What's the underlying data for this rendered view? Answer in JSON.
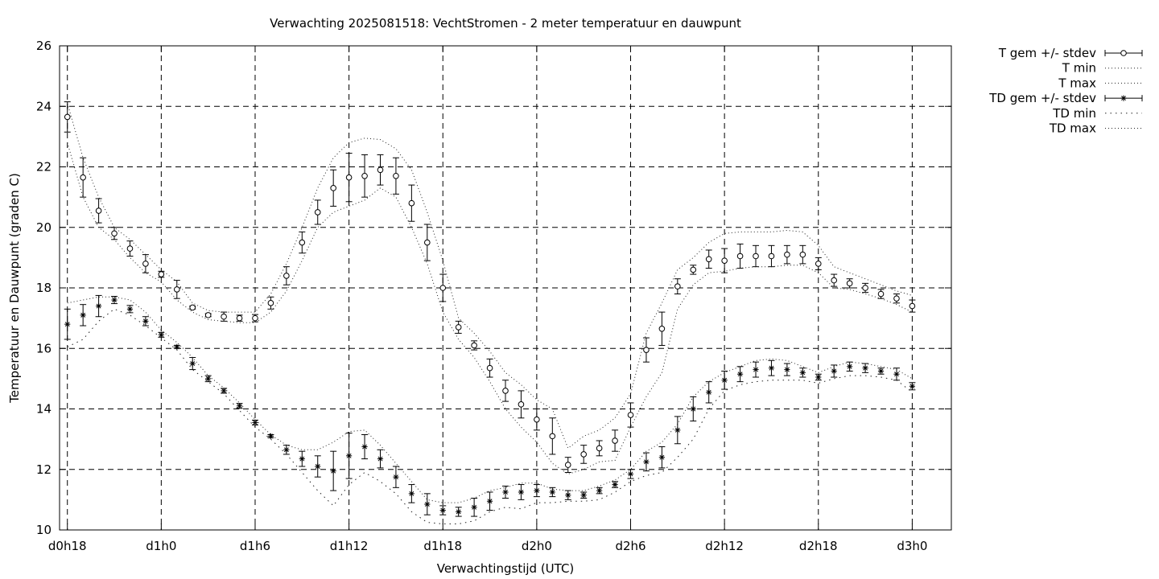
{
  "chart_data": {
    "type": "line",
    "title": "Verwachting 2025081518: VechtStromen - 2 meter temperatuur en dauwpunt",
    "xlabel": "Verwachtingstijd (UTC)",
    "ylabel": "Temperatuur en Dauwpunt (graden C)",
    "xlim": [
      -0.5,
      56.5
    ],
    "ylim": [
      10,
      26
    ],
    "xticks": [
      {
        "x": 0,
        "label": "d0h18"
      },
      {
        "x": 6,
        "label": "d1h0"
      },
      {
        "x": 12,
        "label": "d1h6"
      },
      {
        "x": 18,
        "label": "d1h12"
      },
      {
        "x": 24,
        "label": "d1h18"
      },
      {
        "x": 30,
        "label": "d2h0"
      },
      {
        "x": 36,
        "label": "d2h6"
      },
      {
        "x": 42,
        "label": "d2h12"
      },
      {
        "x": 48,
        "label": "d2h18"
      },
      {
        "x": 54,
        "label": "d3h0"
      }
    ],
    "yticks": [
      10,
      12,
      14,
      16,
      18,
      20,
      22,
      24,
      26
    ],
    "grid": true,
    "legend_position": "outside-top-right",
    "x": [
      0,
      1,
      2,
      3,
      4,
      5,
      6,
      7,
      8,
      9,
      10,
      11,
      12,
      13,
      14,
      15,
      16,
      17,
      18,
      19,
      20,
      21,
      22,
      23,
      24,
      25,
      26,
      27,
      28,
      29,
      30,
      31,
      32,
      33,
      34,
      35,
      36,
      37,
      38,
      39,
      40,
      41,
      42,
      43,
      44,
      45,
      46,
      47,
      48,
      49,
      50,
      51,
      52,
      53,
      54
    ],
    "series": [
      {
        "name": "T gem +/- stdev",
        "kind": "errorbar",
        "marker": "circle",
        "mean": [
          23.65,
          21.65,
          20.55,
          19.8,
          19.3,
          18.8,
          18.45,
          17.95,
          17.35,
          17.1,
          17.05,
          17.0,
          17.0,
          17.5,
          18.4,
          19.5,
          20.5,
          21.3,
          21.65,
          21.7,
          21.9,
          21.7,
          20.8,
          19.5,
          18.0,
          16.7,
          16.1,
          15.35,
          14.6,
          14.15,
          13.65,
          13.1,
          12.15,
          12.5,
          12.7,
          12.95,
          13.8,
          15.95,
          16.65,
          18.05,
          18.6,
          18.95,
          18.9,
          19.05,
          19.05,
          19.05,
          19.1,
          19.1,
          18.8,
          18.25,
          18.15,
          18.0,
          17.8,
          17.65,
          17.4
        ],
        "stdev": [
          0.5,
          0.65,
          0.4,
          0.2,
          0.25,
          0.3,
          0.1,
          0.3,
          0.05,
          0.05,
          0.15,
          0.1,
          0.12,
          0.2,
          0.3,
          0.35,
          0.4,
          0.6,
          0.8,
          0.7,
          0.5,
          0.6,
          0.6,
          0.6,
          0.45,
          0.2,
          0.15,
          0.3,
          0.35,
          0.45,
          0.35,
          0.6,
          0.25,
          0.3,
          0.25,
          0.35,
          0.4,
          0.4,
          0.55,
          0.25,
          0.15,
          0.3,
          0.4,
          0.4,
          0.35,
          0.35,
          0.3,
          0.3,
          0.2,
          0.2,
          0.15,
          0.15,
          0.15,
          0.15,
          0.2
        ]
      },
      {
        "name": "T min",
        "kind": "dotted",
        "values": [
          22.8,
          21.0,
          20.0,
          19.6,
          19.0,
          18.5,
          18.2,
          17.6,
          17.2,
          16.95,
          16.9,
          16.85,
          16.85,
          17.2,
          17.9,
          18.9,
          20.0,
          20.5,
          20.7,
          20.9,
          21.3,
          21.0,
          20.0,
          18.8,
          17.2,
          16.3,
          15.7,
          14.9,
          14.0,
          13.4,
          12.9,
          12.2,
          11.85,
          12.0,
          12.25,
          12.3,
          13.4,
          14.4,
          15.2,
          17.3,
          18.1,
          18.5,
          18.55,
          18.65,
          18.7,
          18.7,
          18.75,
          18.75,
          18.5,
          18.0,
          17.95,
          17.8,
          17.65,
          17.45,
          17.2
        ]
      },
      {
        "name": "T max",
        "kind": "dotted",
        "values": [
          24.1,
          22.3,
          21.0,
          20.0,
          19.6,
          19.1,
          18.6,
          18.2,
          17.5,
          17.25,
          17.2,
          17.2,
          17.2,
          17.8,
          18.8,
          20.0,
          21.3,
          22.3,
          22.8,
          22.95,
          22.9,
          22.6,
          21.9,
          20.5,
          18.9,
          17.0,
          16.5,
          15.9,
          15.2,
          14.8,
          14.3,
          14.0,
          12.7,
          13.1,
          13.3,
          13.7,
          14.5,
          16.5,
          17.5,
          18.6,
          19.0,
          19.5,
          19.8,
          19.85,
          19.85,
          19.85,
          19.9,
          19.85,
          19.4,
          18.7,
          18.5,
          18.3,
          18.1,
          17.9,
          17.75
        ]
      },
      {
        "name": "TD gem +/- stdev",
        "kind": "errorbar",
        "marker": "star",
        "mean": [
          16.8,
          17.1,
          17.4,
          17.6,
          17.3,
          16.9,
          16.45,
          16.05,
          15.5,
          15.0,
          14.6,
          14.1,
          13.55,
          13.1,
          12.65,
          12.35,
          12.1,
          11.95,
          12.45,
          12.75,
          12.35,
          11.75,
          11.2,
          10.85,
          10.65,
          10.6,
          10.75,
          10.95,
          11.25,
          11.25,
          11.3,
          11.25,
          11.15,
          11.15,
          11.3,
          11.5,
          11.85,
          12.25,
          12.4,
          13.3,
          14.0,
          14.55,
          14.95,
          15.15,
          15.3,
          15.35,
          15.3,
          15.2,
          15.05,
          15.25,
          15.4,
          15.35,
          15.25,
          15.15,
          14.75
        ],
        "stdev": [
          0.5,
          0.35,
          0.35,
          0.12,
          0.12,
          0.15,
          0.08,
          0.05,
          0.2,
          0.1,
          0.08,
          0.08,
          0.08,
          0.05,
          0.15,
          0.25,
          0.35,
          0.65,
          0.75,
          0.4,
          0.3,
          0.35,
          0.3,
          0.35,
          0.15,
          0.15,
          0.3,
          0.3,
          0.2,
          0.25,
          0.2,
          0.15,
          0.15,
          0.1,
          0.1,
          0.1,
          0.15,
          0.3,
          0.35,
          0.45,
          0.4,
          0.35,
          0.3,
          0.25,
          0.25,
          0.25,
          0.2,
          0.15,
          0.1,
          0.2,
          0.15,
          0.15,
          0.1,
          0.2,
          0.12
        ]
      },
      {
        "name": "TD min",
        "kind": "dotted",
        "values": [
          16.05,
          16.3,
          16.9,
          17.3,
          17.1,
          16.75,
          16.35,
          15.95,
          15.3,
          14.9,
          14.5,
          13.95,
          13.4,
          13.0,
          12.5,
          11.9,
          11.3,
          10.8,
          11.5,
          11.9,
          11.6,
          11.2,
          10.6,
          10.25,
          10.2,
          10.2,
          10.3,
          10.6,
          10.75,
          10.7,
          10.9,
          10.9,
          10.95,
          10.95,
          11.0,
          11.25,
          11.6,
          11.8,
          11.9,
          12.4,
          13.0,
          14.0,
          14.6,
          14.8,
          14.9,
          14.95,
          14.95,
          14.95,
          14.85,
          15.0,
          15.1,
          15.1,
          15.05,
          14.95,
          14.55
        ]
      },
      {
        "name": "TD max",
        "kind": "dotted",
        "values": [
          17.5,
          17.6,
          17.7,
          17.7,
          17.6,
          17.2,
          16.6,
          16.2,
          15.7,
          15.1,
          14.7,
          14.2,
          13.65,
          13.15,
          12.8,
          12.65,
          12.65,
          12.9,
          13.25,
          13.3,
          12.8,
          12.2,
          11.6,
          11.0,
          10.9,
          10.9,
          11.05,
          11.3,
          11.4,
          11.55,
          11.55,
          11.35,
          11.3,
          11.3,
          11.45,
          11.65,
          12.0,
          12.6,
          12.9,
          13.5,
          14.4,
          14.9,
          15.2,
          15.4,
          15.6,
          15.65,
          15.6,
          15.4,
          15.2,
          15.4,
          15.55,
          15.5,
          15.4,
          15.3,
          15.0
        ]
      }
    ]
  }
}
